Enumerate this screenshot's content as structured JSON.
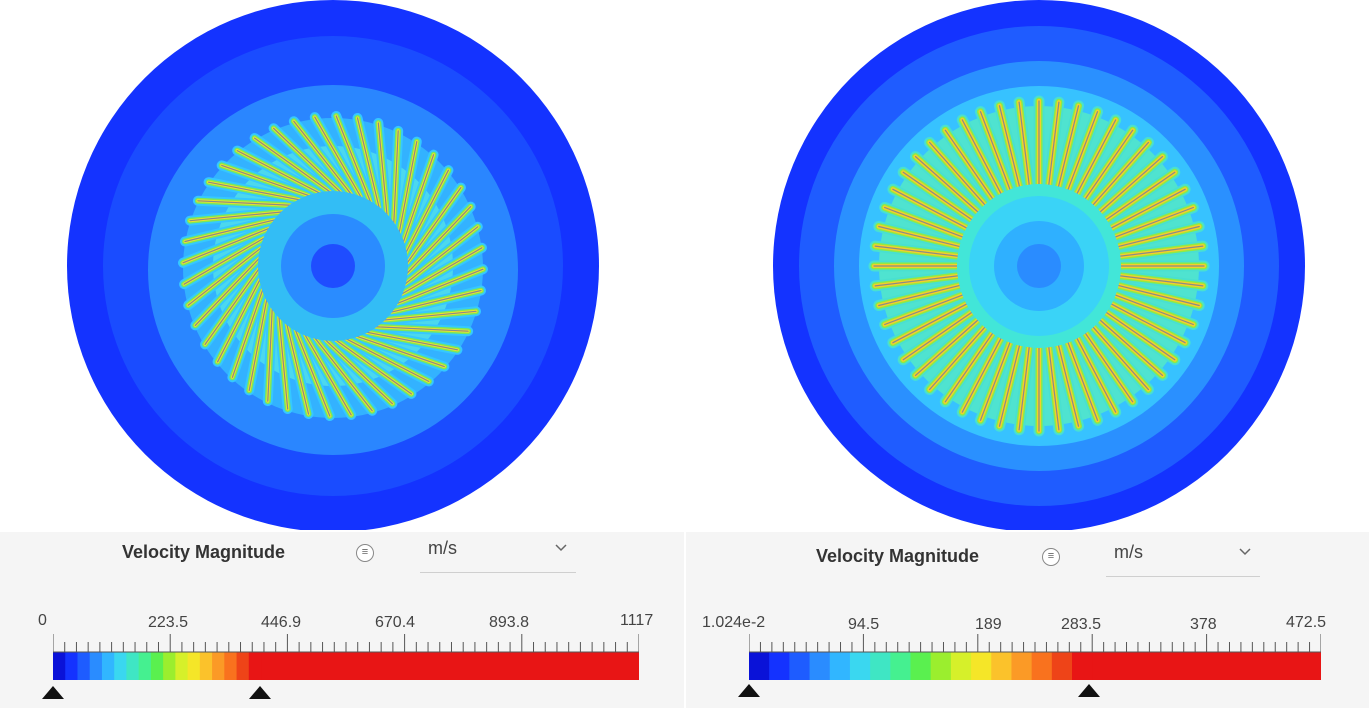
{
  "left": {
    "legend_title": "Velocity Magnitude",
    "unit": "m/s",
    "ticks": [
      "0",
      "223.5",
      "446.9",
      "670.4",
      "893.8",
      "1117"
    ],
    "colors": [
      "#0a12d8",
      "#1432ff",
      "#1e5cff",
      "#2a8cff",
      "#31b6ff",
      "#3ad7f0",
      "#3fe6c4",
      "#45f090",
      "#5af04f",
      "#9bee2e",
      "#d6f02a",
      "#f5e628",
      "#fbc22b",
      "#fb9a26",
      "#f9721e",
      "#ee4418",
      "#e81515"
    ],
    "marker_fractions": [
      0.0,
      0.355
    ]
  },
  "right": {
    "legend_title": "Velocity Magnitude",
    "unit": "m/s",
    "ticks": [
      "1.024e-2",
      "94.5",
      "189",
      "283.5",
      "378",
      "472.5"
    ],
    "colors": [
      "#0a12d8",
      "#1432ff",
      "#1e5cff",
      "#2a8cff",
      "#31b6ff",
      "#3ad7f0",
      "#3fe6c4",
      "#45f090",
      "#5af04f",
      "#9bee2e",
      "#d6f02a",
      "#f5e628",
      "#fbc22b",
      "#fb9a26",
      "#f9721e",
      "#ee4418",
      "#e81515"
    ],
    "marker_fractions": [
      0.0,
      0.6
    ]
  },
  "icons": {
    "info": "list-icon",
    "dropdown": "chevron-down-icon"
  }
}
